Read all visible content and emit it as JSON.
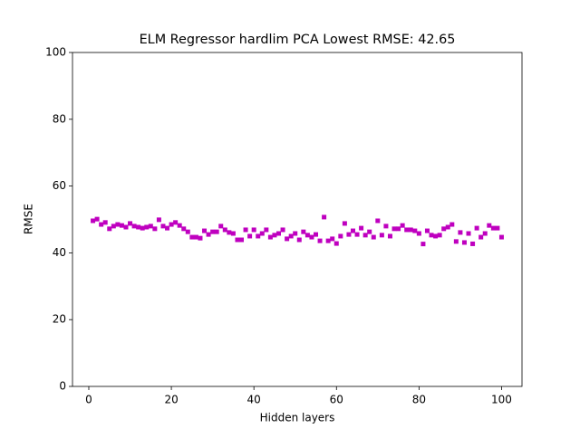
{
  "chart_data": {
    "type": "scatter",
    "title": "ELM Regressor hardlim PCA Lowest RMSE: 42.65",
    "x_label": "Hidden layers",
    "y_label": "RMSE",
    "x": [
      1,
      2,
      3,
      4,
      5,
      6,
      7,
      8,
      9,
      10,
      11,
      12,
      13,
      14,
      15,
      16,
      17,
      18,
      19,
      20,
      21,
      22,
      23,
      24,
      25,
      26,
      27,
      28,
      29,
      30,
      31,
      32,
      33,
      34,
      35,
      36,
      37,
      38,
      39,
      40,
      41,
      42,
      43,
      44,
      45,
      46,
      47,
      48,
      49,
      50,
      51,
      52,
      53,
      54,
      55,
      56,
      57,
      58,
      59,
      60,
      61,
      62,
      63,
      64,
      65,
      66,
      67,
      68,
      69,
      70,
      71,
      72,
      73,
      74,
      75,
      76,
      77,
      78,
      79,
      80,
      81,
      82,
      83,
      84,
      85,
      86,
      87,
      88,
      89,
      90,
      91,
      92,
      93,
      94,
      95,
      96,
      97,
      98,
      99,
      100
    ],
    "values": [
      49.6,
      50.1,
      48.5,
      49.1,
      47.2,
      48.0,
      48.5,
      48.2,
      47.7,
      48.8,
      48.0,
      47.7,
      47.4,
      47.7,
      48.0,
      47.2,
      49.9,
      48.0,
      47.4,
      48.5,
      49.1,
      48.2,
      47.2,
      46.3,
      44.7,
      44.7,
      44.4,
      46.6,
      45.5,
      46.3,
      46.3,
      48.0,
      46.9,
      46.1,
      45.8,
      43.9,
      43.9,
      46.9,
      45.0,
      46.9,
      45.0,
      45.8,
      46.9,
      44.7,
      45.3,
      45.8,
      46.9,
      44.2,
      45.0,
      45.8,
      43.9,
      46.3,
      45.3,
      44.7,
      45.5,
      43.6,
      50.7,
      43.6,
      44.2,
      42.8,
      45.0,
      48.8,
      45.5,
      46.6,
      45.5,
      47.4,
      45.3,
      46.3,
      44.7,
      49.6,
      45.3,
      48.0,
      45.0,
      47.2,
      47.2,
      48.2,
      46.9,
      46.9,
      46.6,
      45.8,
      42.65,
      46.6,
      45.3,
      45.0,
      45.3,
      47.2,
      47.7,
      48.5,
      43.4,
      46.1,
      43.1,
      45.8,
      42.7,
      47.4,
      44.7,
      45.8,
      48.2,
      47.4,
      47.4,
      44.7
    ],
    "color": "#bf00bf",
    "xlim": [
      -3.95,
      104.95
    ],
    "xticks": [
      0,
      20,
      40,
      60,
      80,
      100
    ],
    "ylim": [
      0,
      100
    ],
    "yticks": [
      0,
      20,
      40,
      60,
      80,
      100
    ],
    "grid": false
  }
}
